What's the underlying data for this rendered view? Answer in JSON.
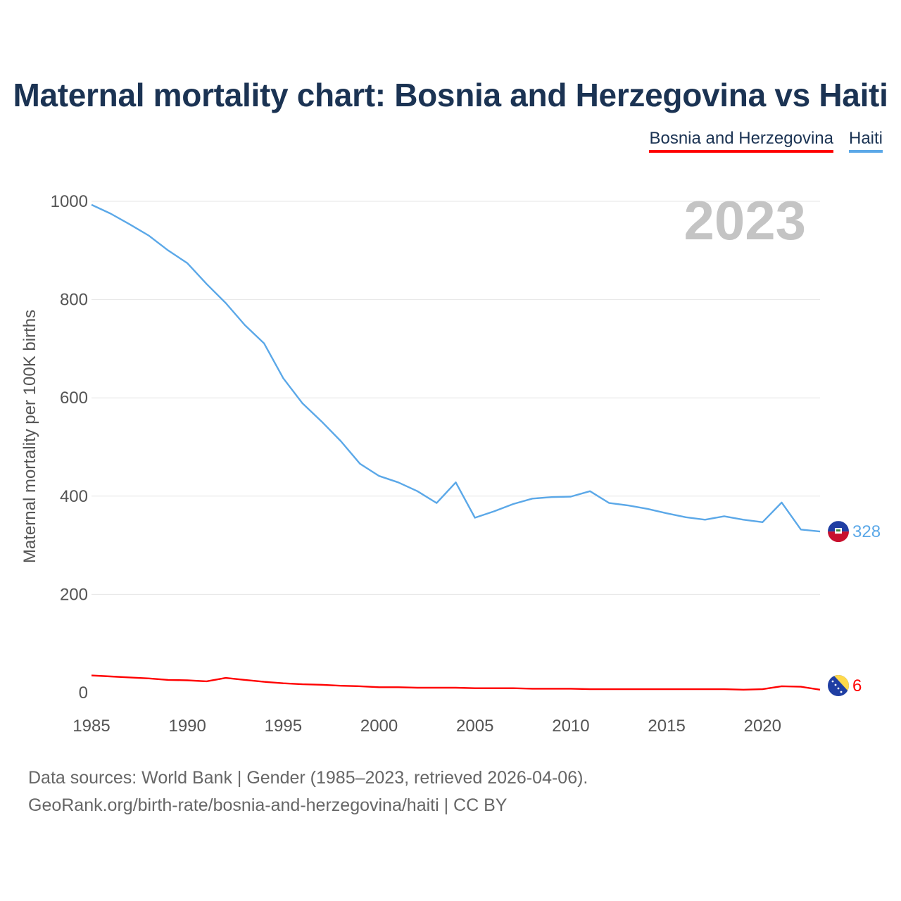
{
  "title": "Maternal mortality chart: Bosnia and Herzegovina vs Haiti",
  "legend": [
    {
      "label": "Bosnia and Herzegovina",
      "color": "#ff0000"
    },
    {
      "label": "Haiti",
      "color": "#5ba8e8"
    }
  ],
  "year_overlay": "2023",
  "footer": {
    "line1": "Data sources: World Bank | Gender (1985–2023, retrieved 2026-04-06).",
    "line2": "GeoRank.org/birth-rate/bosnia-and-herzegovina/haiti | CC BY"
  },
  "chart_data": {
    "type": "line",
    "title": "Maternal mortality chart: Bosnia and Herzegovina vs Haiti",
    "xlabel": "",
    "ylabel": "Maternal mortality per 100K births",
    "xlim": [
      1985,
      2023
    ],
    "ylim": [
      0,
      1000
    ],
    "x_ticks": [
      1985,
      1990,
      1995,
      2000,
      2005,
      2010,
      2015,
      2020
    ],
    "y_ticks": [
      0,
      200,
      400,
      600,
      800,
      1000
    ],
    "grid": true,
    "legend_position": "top-right",
    "x": [
      1985,
      1986,
      1987,
      1988,
      1989,
      1990,
      1991,
      1992,
      1993,
      1994,
      1995,
      1996,
      1997,
      1998,
      1999,
      2000,
      2001,
      2002,
      2003,
      2004,
      2005,
      2006,
      2007,
      2008,
      2009,
      2010,
      2011,
      2012,
      2013,
      2014,
      2015,
      2016,
      2017,
      2018,
      2019,
      2020,
      2021,
      2022,
      2023
    ],
    "series": [
      {
        "name": "Haiti",
        "color": "#5ba8e8",
        "end_label": "328",
        "flag": "haiti",
        "values": [
          993,
          975,
          953,
          930,
          900,
          874,
          832,
          793,
          748,
          711,
          640,
          589,
          552,
          512,
          466,
          441,
          428,
          410,
          386,
          428,
          356,
          369,
          384,
          395,
          398,
          399,
          410,
          386,
          381,
          374,
          365,
          357,
          352,
          359,
          352,
          347,
          387,
          332,
          328
        ]
      },
      {
        "name": "Bosnia and Herzegovina",
        "color": "#ff0000",
        "end_label": "6",
        "flag": "bosnia",
        "values": [
          35,
          33,
          31,
          29,
          26,
          25,
          23,
          30,
          26,
          22,
          19,
          17,
          16,
          14,
          13,
          11,
          11,
          10,
          10,
          10,
          9,
          9,
          9,
          8,
          8,
          8,
          7,
          7,
          7,
          7,
          7,
          7,
          7,
          7,
          6,
          7,
          13,
          12,
          6
        ]
      }
    ]
  }
}
